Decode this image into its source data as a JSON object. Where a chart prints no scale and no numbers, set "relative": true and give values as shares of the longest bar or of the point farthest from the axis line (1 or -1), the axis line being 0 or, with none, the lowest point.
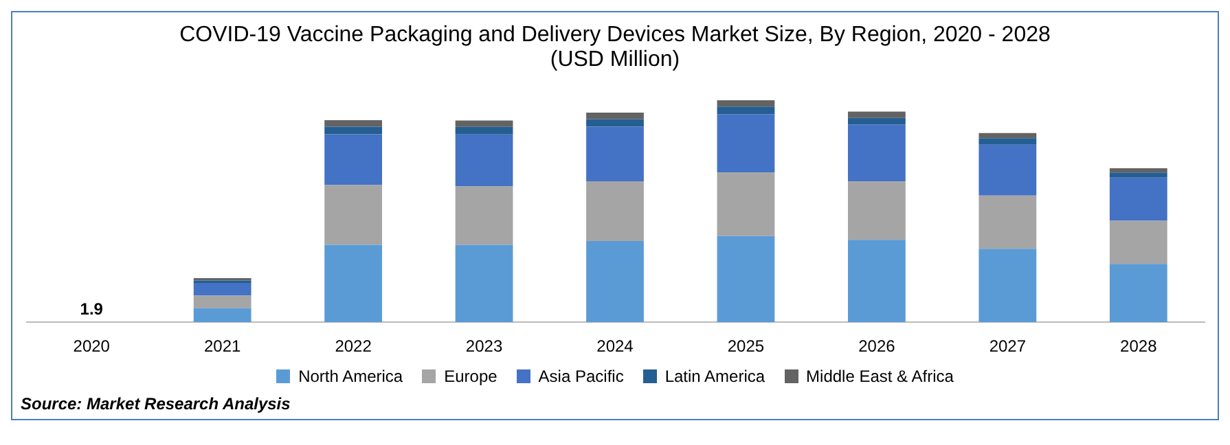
{
  "chart_data": {
    "type": "bar",
    "title": "COVID-19 Vaccine Packaging and Delivery Devices Market Size, By Region, 2020 - 2028",
    "subtitle": "(USD Million)",
    "categories": [
      "2020",
      "2021",
      "2022",
      "2023",
      "2024",
      "2025",
      "2026",
      "2027",
      "2028"
    ],
    "stacked": true,
    "relative": true,
    "legend": "bottom",
    "grid": false,
    "series": [
      {
        "name": "North America",
        "color": "#5b9bd5",
        "values": [
          null,
          0.063,
          0.349,
          0.349,
          0.366,
          0.388,
          0.371,
          0.331,
          0.263
        ]
      },
      {
        "name": "Europe",
        "color": "#a5a5a5",
        "values": [
          null,
          0.057,
          0.269,
          0.263,
          0.269,
          0.286,
          0.263,
          0.24,
          0.194
        ]
      },
      {
        "name": "Asia Pacific",
        "color": "#4472c4",
        "values": [
          null,
          0.057,
          0.229,
          0.234,
          0.246,
          0.263,
          0.257,
          0.229,
          0.194
        ]
      },
      {
        "name": "Latin America",
        "color": "#255e91",
        "values": [
          null,
          0.011,
          0.034,
          0.034,
          0.034,
          0.034,
          0.029,
          0.029,
          0.023
        ]
      },
      {
        "name": "Middle East & Africa",
        "color": "#636363",
        "values": [
          null,
          0.011,
          0.029,
          0.029,
          0.029,
          0.029,
          0.029,
          0.023,
          0.02
        ]
      }
    ],
    "annotations": [
      "1.9",
      "Source: Market Research Analysis"
    ]
  }
}
